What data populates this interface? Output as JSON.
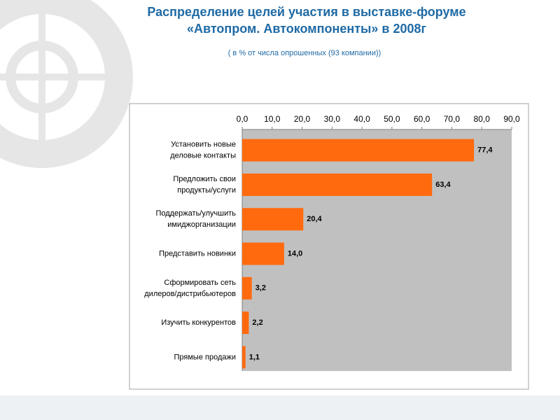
{
  "chart_data": {
    "type": "bar",
    "orientation": "horizontal",
    "title": "Распределение целей участия в выставке-форуме\n«Автопром. Автокомпоненты» в 2008г",
    "subtitle": "( в % от числа опрошенных  (93 компании))",
    "categories": [
      "Установить новые\nделовые контакты",
      "Предложить свои\nпродукты/услуги",
      "Поддержать/улучшить\nимиджорганизации",
      "Представить новинки",
      "Сформировать сеть\nдилеров/дистрибьютеров",
      "Изучить конкурентов",
      "Прямые продажи"
    ],
    "values": [
      77.4,
      63.4,
      20.4,
      14.0,
      3.2,
      2.2,
      1.1
    ],
    "value_labels": [
      "77,4",
      "63,4",
      "20,4",
      "14,0",
      "3,2",
      "2,2",
      "1,1"
    ],
    "color": "#ff6a0e",
    "xlim": [
      0,
      90
    ],
    "xticks": [
      {
        "value": 0,
        "label": "0,0"
      },
      {
        "value": 10,
        "label": "10,0"
      },
      {
        "value": 20,
        "label": "20,0"
      },
      {
        "value": 30,
        "label": "30,0"
      },
      {
        "value": 40,
        "label": "40,0"
      },
      {
        "value": 50,
        "label": "50,0"
      },
      {
        "value": 60,
        "label": "60,0"
      },
      {
        "value": 70,
        "label": "70,0"
      },
      {
        "value": 80,
        "label": "80,0"
      },
      {
        "value": 90,
        "label": "90,0"
      }
    ]
  }
}
